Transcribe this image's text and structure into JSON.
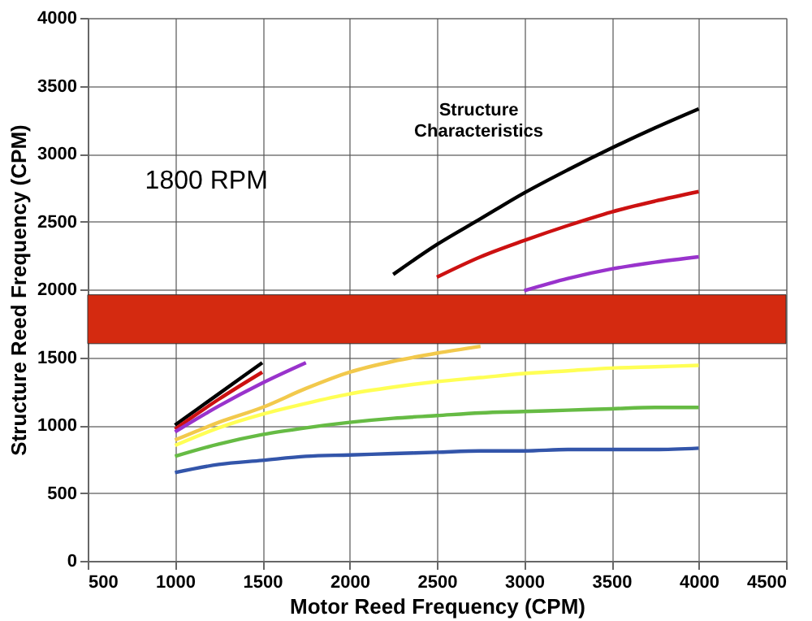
{
  "chart_data": {
    "type": "line",
    "xlabel": "Motor Reed Frequency (CPM)",
    "ylabel": "Structure Reed Frequency (CPM)",
    "annotations": [
      "Structure Characteristics",
      "1800 RPM"
    ],
    "xlim": [
      500,
      4500
    ],
    "xticks": [
      500,
      1000,
      1500,
      2000,
      2500,
      3000,
      3500,
      4000,
      4500
    ],
    "ylim": [
      0,
      4000
    ],
    "yticks": [
      0,
      500,
      1000,
      1500,
      2000,
      2500,
      3000,
      3500,
      4000
    ],
    "grid": true,
    "legend": false,
    "marker": "none",
    "line_style": "solid",
    "x": [
      1000,
      1250,
      1500,
      1750,
      2000,
      2250,
      2500,
      2750,
      3000,
      3250,
      3500,
      3750,
      4000
    ],
    "series": [
      {
        "color": "#000000",
        "values": [
          1000,
          1230,
          1460,
          null,
          null,
          2110,
          2330,
          2520,
          2710,
          2880,
          3040,
          3190,
          3330
        ]
      },
      {
        "color": "#cc1111",
        "values": [
          970,
          1190,
          1390,
          null,
          null,
          null,
          2090,
          2240,
          2360,
          2470,
          2570,
          2650,
          2720
        ]
      },
      {
        "color": "#9933cc",
        "values": [
          950,
          1140,
          1310,
          1460,
          null,
          null,
          null,
          null,
          1990,
          2080,
          2150,
          2200,
          2240
        ]
      },
      {
        "color": "#f2c94c",
        "values": [
          890,
          1020,
          1130,
          1270,
          1390,
          1470,
          1530,
          1580,
          null,
          null,
          null,
          null,
          null
        ]
      },
      {
        "color": "#ffff55",
        "values": [
          850,
          980,
          1080,
          1160,
          1230,
          1280,
          1320,
          1350,
          1380,
          1400,
          1420,
          1430,
          1440
        ]
      },
      {
        "color": "#66bb44",
        "values": [
          770,
          860,
          930,
          980,
          1020,
          1050,
          1070,
          1090,
          1100,
          1110,
          1120,
          1130,
          1130
        ]
      },
      {
        "color": "#3355aa",
        "values": [
          650,
          710,
          740,
          770,
          780,
          790,
          800,
          810,
          810,
          820,
          820,
          820,
          830
        ]
      }
    ],
    "bands": [
      {
        "axis": "y",
        "from": 1600,
        "to": 1960,
        "color": "#d42a10"
      }
    ]
  }
}
